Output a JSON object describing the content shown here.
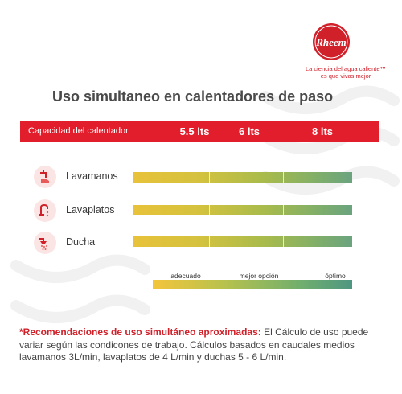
{
  "brand": {
    "name": "Rheem",
    "tagline_line1": "La ciencia del agua caliente™",
    "tagline_line2": "es que vivas mejor",
    "color": "#d0202a"
  },
  "title": "Uso simultaneo en calentadores de paso",
  "chart_data": {
    "type": "bar",
    "header_label": "Capacidad del calentador",
    "capacities": [
      "5.5 lts",
      "6 lts",
      "8 lts"
    ],
    "rows": [
      {
        "label": "Lavamanos",
        "icon": "faucet-hands-icon"
      },
      {
        "label": "Lavaplatos",
        "icon": "kitchen-faucet-icon"
      },
      {
        "label": "Ducha",
        "icon": "shower-icon"
      }
    ],
    "scale_labels": [
      "adecuado",
      "mejor opción",
      "óptimo"
    ],
    "colors": {
      "header": "#e31e2c",
      "gradient_start": "#f3c53b",
      "gradient_end": "#4f9682"
    }
  },
  "note": {
    "asterisk": "*",
    "heading": "Recomendaciones de uso simultáneo aproximadas:",
    "body": " El Cálculo de uso puede variar según las condicones de trabajo. Cálculos basados en caudales medios lavamanos 3L/min, lavaplatos de 4 L/min y duchas 5 - 6 L/min."
  }
}
